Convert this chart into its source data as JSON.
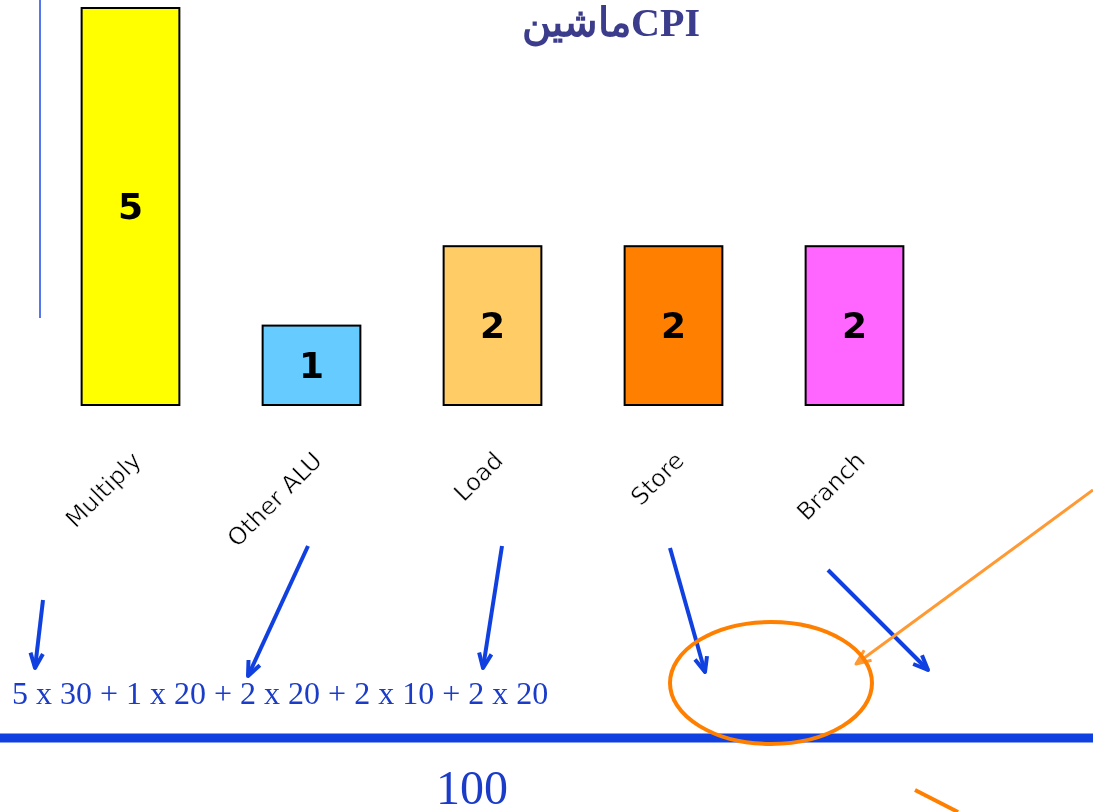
{
  "chart_data": {
    "type": "bar",
    "title": "CPIماشین",
    "categories": [
      "Multiply",
      "Other ALU",
      "Load",
      "Store",
      "Branch"
    ],
    "values": [
      5,
      1,
      2,
      2,
      2
    ],
    "colors": [
      "#ffff00",
      "#66ccff",
      "#ffcc66",
      "#ff8000",
      "#ff66ff"
    ],
    "data_labels": true,
    "relative": false,
    "annotations": [
      "5 x 30 + 1 x 20  +  2 x 20  +  2 x 10   + 2 x 20",
      "100"
    ]
  }
}
